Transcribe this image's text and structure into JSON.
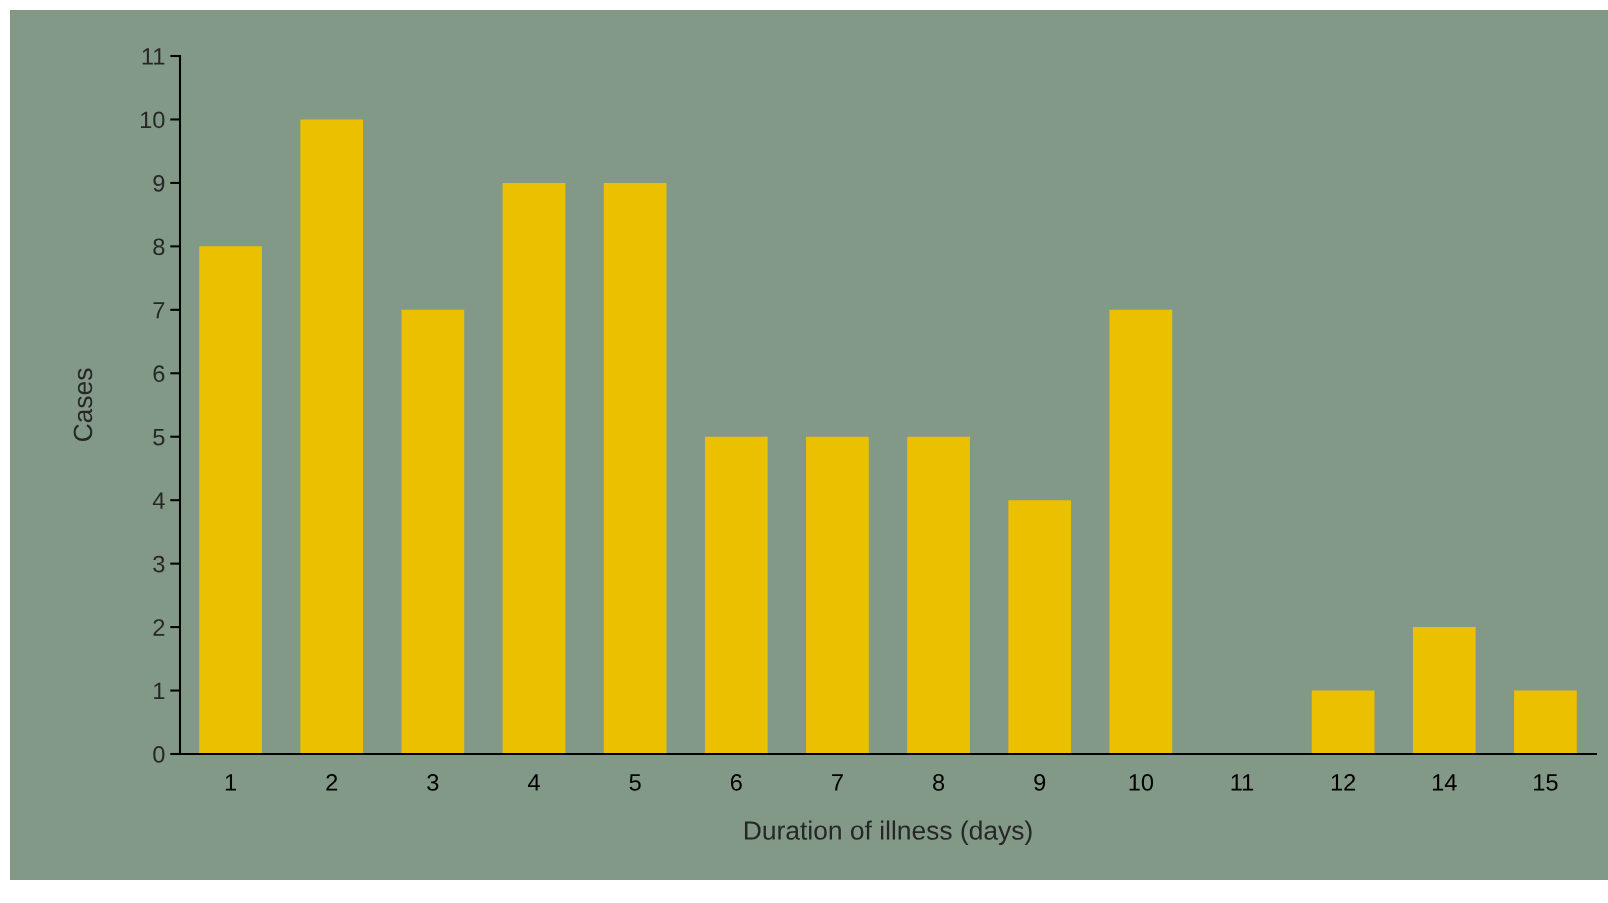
{
  "chart_data": {
    "type": "bar",
    "xlabel": "Duration of illness (days)",
    "ylabel": "Cases",
    "categories": [
      "1",
      "2",
      "3",
      "4",
      "5",
      "6",
      "7",
      "8",
      "9",
      "10",
      "11",
      "12",
      "14",
      "15"
    ],
    "values": [
      8,
      10,
      7,
      9,
      9,
      5,
      5,
      5,
      4,
      7,
      0,
      1,
      2,
      1
    ],
    "color": "#ebc000",
    "ylim": [
      0,
      11
    ],
    "yticks": [
      0,
      1,
      2,
      3,
      4,
      5,
      6,
      7,
      8,
      9,
      10,
      11
    ],
    "grid": false,
    "legend": false
  }
}
